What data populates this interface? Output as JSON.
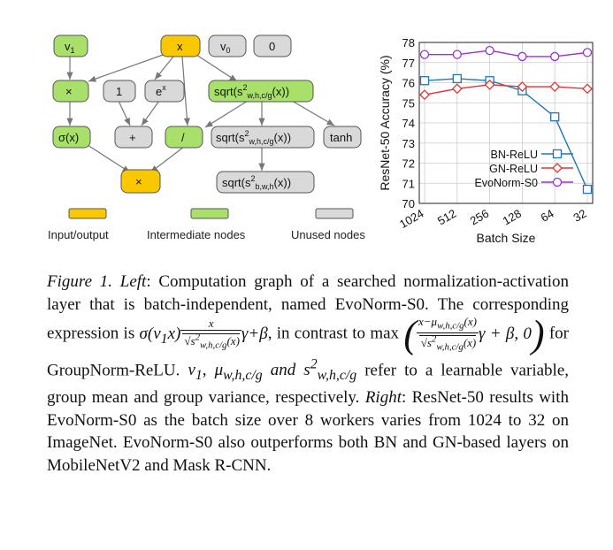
{
  "graph": {
    "nodes": {
      "v1": "v",
      "v1_sub": "1",
      "x": "x",
      "v0": "v",
      "v0_sub": "0",
      "zero": "0",
      "times1": "×",
      "one": "1",
      "ex": "e",
      "ex_sup": "x",
      "sqrt_top": "sqrt(s",
      "sqrt_top_sup": "2",
      "sqrt_top_sub": "w,h,c/g",
      "sqrt_top_tail": "(x))",
      "sigma": "σ(x)",
      "plus": "+",
      "divide": "/",
      "sqrt_mid": "sqrt(s",
      "sqrt_mid_sup": "2",
      "sqrt_mid_sub": "w,h,c/g",
      "sqrt_mid_tail": "(x))",
      "tanh": "tanh",
      "times2": "×",
      "sqrt_bot": "sqrt(s",
      "sqrt_bot_sup": "2",
      "sqrt_bot_sub": "b,w,h",
      "sqrt_bot_tail": "(x))"
    },
    "legend": {
      "io": "Input/output",
      "intermediate": "Intermediate nodes",
      "unused": "Unused nodes"
    },
    "colors": {
      "io": "#f9c800",
      "intermediate": "#a8e06a",
      "unused": "#d9d9d9"
    }
  },
  "chart_data": {
    "type": "line",
    "categories": [
      "1024",
      "512",
      "256",
      "128",
      "64",
      "32"
    ],
    "ylabel": "ResNet-50 Accuracy (%)",
    "xlabel": "Batch Size",
    "ylim": [
      70,
      78
    ],
    "yticks": [
      70,
      71,
      72,
      73,
      74,
      75,
      76,
      77,
      78
    ],
    "series": [
      {
        "name": "BN-ReLU",
        "color": "#1f77b4",
        "marker": "square",
        "values": [
          76.1,
          76.2,
          76.1,
          75.6,
          74.3,
          70.7
        ]
      },
      {
        "name": "GN-ReLU",
        "color": "#e3342f",
        "marker": "diamond",
        "values": [
          75.4,
          75.7,
          75.9,
          75.8,
          75.8,
          75.7
        ]
      },
      {
        "name": "EvoNorm-S0",
        "color": "#9b30d9",
        "marker": "circle",
        "values": [
          77.4,
          77.4,
          77.6,
          77.3,
          77.3,
          77.5
        ]
      }
    ],
    "legend_position": "bottom-left"
  },
  "caption": {
    "label": "Figure 1.",
    "left": "Left",
    "p1": ": Computation graph of a searched normalization-activation layer that is batch-independent, named EvoNorm-S0. The corresponding expression is",
    "p2": ", in contrast to max",
    "p3": "for GroupNorm-ReLU.",
    "p4": "refer to a learnable variable, group mean and group variance, respectively.",
    "right": "Right",
    "p5": ": ResNet-50 results with EvoNorm-S0 as the batch size over 8 workers varies from 1024 to 32 on ImageNet. EvoNorm-S0 also outperforms both BN and GN-based layers on MobileNetV2 and Mask R-CNN."
  }
}
